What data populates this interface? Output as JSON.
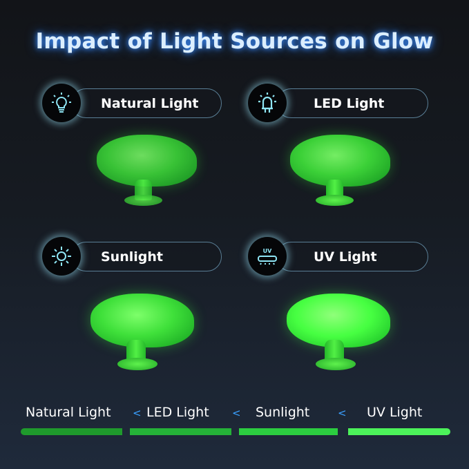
{
  "title": "Impact of Light Sources on Glow",
  "cards": [
    {
      "label": "Natural Light",
      "icon": "lightbulb-icon"
    },
    {
      "label": "LED Light",
      "icon": "led-icon"
    },
    {
      "label": "Sunlight",
      "icon": "sun-icon"
    },
    {
      "label": "UV Light",
      "icon": "uv-lamp-icon",
      "icon_text": "UV"
    }
  ],
  "scale": {
    "labels": [
      "Natural Light",
      "LED Light",
      "Sunlight",
      "UV Light"
    ],
    "separator": "<",
    "bar_colors": [
      "#1f9a2c",
      "#25b238",
      "#2ccd40",
      "#4cf25a"
    ]
  },
  "colors": {
    "icon_accent": "#8fe6f5",
    "glow_green": "#3fe03a"
  }
}
